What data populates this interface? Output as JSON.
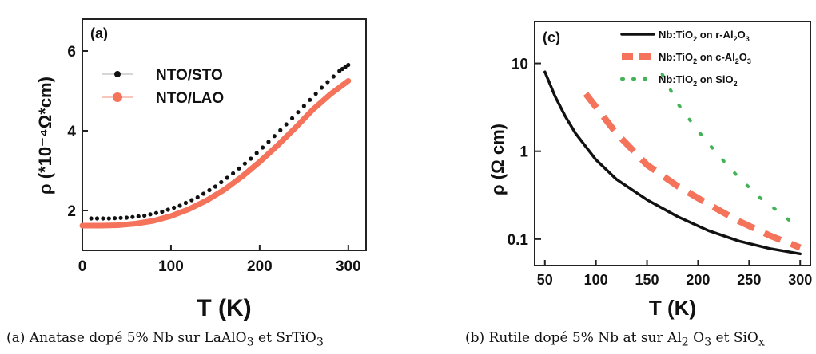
{
  "captions": {
    "a": "(a) Anatase dopé 5% Nb sur LaAlO",
    "a_sub1": "3",
    "a_mid": " et SrTiO",
    "a_sub2": "3",
    "b": "(b) Rutile dopé 5% Nb at sur Al",
    "b_sub1": "2",
    "b_mid": " O",
    "b_sub2": "3",
    "b_mid2": " et SiO",
    "b_sub3": "x"
  },
  "chart_data": [
    {
      "type": "line",
      "panel_label": "(a)",
      "xlabel": "T (K)",
      "ylabel": "ρ (*10⁻⁴Ω*cm)",
      "xlim": [
        0,
        320
      ],
      "ylim": [
        1.0,
        6.8
      ],
      "xticks": [
        "0",
        "100",
        "200",
        "300"
      ],
      "yticks": [
        "2",
        "4",
        "6"
      ],
      "legend_position": "top-left",
      "series": [
        {
          "name": "NTO/STO",
          "color": "#111111",
          "style": "dotted-markers",
          "x": [
            10,
            30,
            50,
            70,
            90,
            110,
            130,
            150,
            170,
            190,
            210,
            230,
            250,
            270,
            290,
            300
          ],
          "y": [
            1.8,
            1.8,
            1.82,
            1.87,
            1.97,
            2.12,
            2.33,
            2.6,
            2.93,
            3.3,
            3.72,
            4.16,
            4.62,
            5.08,
            5.5,
            5.65
          ]
        },
        {
          "name": "NTO/LAO",
          "color": "#f4735a",
          "style": "thick-line",
          "x": [
            0,
            20,
            40,
            60,
            80,
            100,
            120,
            140,
            160,
            180,
            200,
            220,
            240,
            260,
            280,
            300
          ],
          "y": [
            1.62,
            1.62,
            1.63,
            1.67,
            1.74,
            1.86,
            2.03,
            2.25,
            2.52,
            2.85,
            3.22,
            3.63,
            4.07,
            4.53,
            4.92,
            5.25
          ]
        }
      ]
    },
    {
      "type": "line",
      "panel_label": "(c)",
      "xlabel": "T (K)",
      "ylabel": "ρ (Ω cm)",
      "yscale": "log",
      "xlim": [
        40,
        310
      ],
      "ylim": [
        0.05,
        30
      ],
      "xticks": [
        "50",
        "100",
        "150",
        "200",
        "250",
        "300"
      ],
      "yticks": [
        "0.1",
        "1",
        "10"
      ],
      "legend_position": "top-right",
      "series": [
        {
          "name": "Nb:TiO2 on r-Al2O3",
          "legend_parts": [
            "Nb:TiO",
            "2",
            " on r-Al",
            "2",
            "O",
            "3"
          ],
          "color": "#111111",
          "style": "solid",
          "x": [
            50,
            60,
            70,
            80,
            100,
            120,
            150,
            180,
            210,
            240,
            270,
            300
          ],
          "y": [
            8.0,
            4.2,
            2.5,
            1.6,
            0.8,
            0.48,
            0.28,
            0.18,
            0.125,
            0.095,
            0.078,
            0.068
          ]
        },
        {
          "name": "Nb:TiO2 on c-Al2O3",
          "legend_parts": [
            "Nb:TiO",
            "2",
            " on c-Al",
            "2",
            "O",
            "3"
          ],
          "color": "#f4735a",
          "style": "dashed",
          "x": [
            90,
            100,
            120,
            150,
            180,
            210,
            240,
            270,
            300
          ],
          "y": [
            4.5,
            3.2,
            1.6,
            0.7,
            0.4,
            0.25,
            0.16,
            0.11,
            0.08
          ]
        },
        {
          "name": "Nb:TiO2 on SiO2",
          "legend_parts": [
            "Nb:TiO",
            "2",
            " on SiO",
            "2",
            "",
            ""
          ],
          "color": "#43b357",
          "style": "dotted",
          "x": [
            165,
            180,
            200,
            220,
            240,
            260,
            280,
            300
          ],
          "y": [
            7.5,
            3.5,
            1.7,
            0.9,
            0.5,
            0.3,
            0.2,
            0.13
          ]
        }
      ]
    }
  ]
}
